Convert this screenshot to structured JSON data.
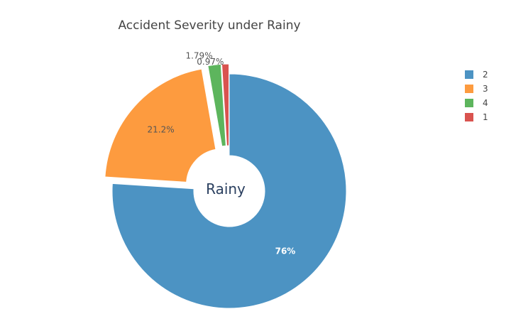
{
  "chart_data": {
    "type": "pie",
    "title": "Accident Severity under Rainy",
    "hole_label": "Rainy",
    "donut": true,
    "legend_position": "top-right",
    "slices": [
      {
        "label": "2",
        "percent": 76.0,
        "display": "76%",
        "color": "#4c93c3",
        "label_color": "#ffffff",
        "pulled": false,
        "label_inside": true
      },
      {
        "label": "3",
        "percent": 21.2,
        "display": "21.2%",
        "color": "#fd9b3f",
        "label_color": "#555555",
        "pulled": true,
        "label_inside": true
      },
      {
        "label": "4",
        "percent": 1.79,
        "display": "1.79%",
        "color": "#5db55d",
        "label_color": "#555555",
        "pulled": true,
        "label_inside": false
      },
      {
        "label": "1",
        "percent": 0.97,
        "display": "0.97%",
        "color": "#d9534f",
        "label_color": "#555555",
        "pulled": true,
        "label_inside": false
      }
    ]
  }
}
